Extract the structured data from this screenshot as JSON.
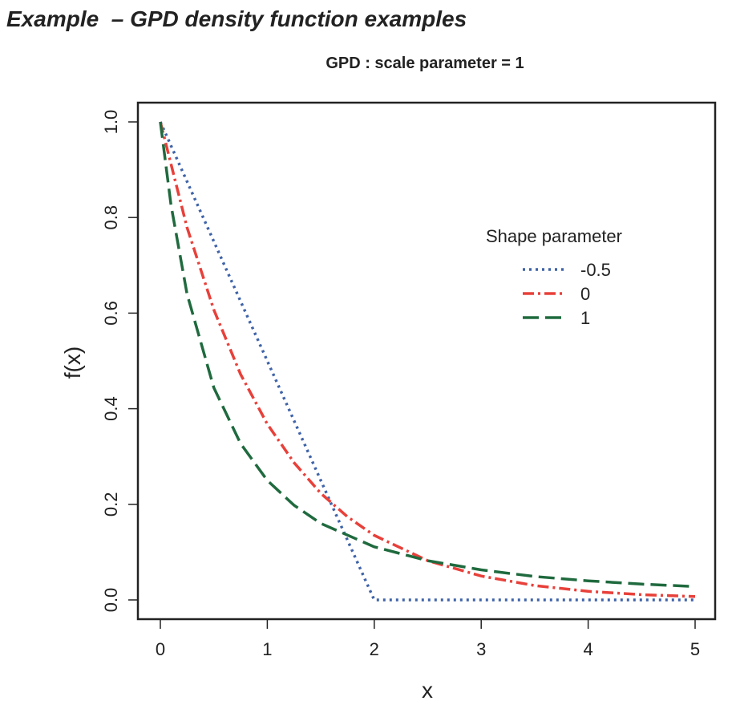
{
  "slide_title": "Example  – GPD density function examples",
  "chart_data": {
    "type": "line",
    "title": "GPD : scale parameter = 1",
    "xlabel": "x",
    "ylabel": "f(x)",
    "xlim": [
      0,
      5
    ],
    "ylim": [
      0,
      1
    ],
    "xticks": [
      "0",
      "1",
      "2",
      "3",
      "4",
      "5"
    ],
    "yticks": [
      "0.0",
      "0.2",
      "0.4",
      "0.6",
      "0.8",
      "1.0"
    ],
    "grid": false,
    "legend": {
      "title": "Shape parameter",
      "placement": "top-right"
    },
    "series": [
      {
        "name": "-0.5",
        "color": "#3f63a8",
        "style": "dotted",
        "x": [
          0,
          0.2,
          0.4,
          0.6,
          0.8,
          1.0,
          1.2,
          1.4,
          1.6,
          1.8,
          2.0,
          2.5,
          3,
          3.5,
          4,
          4.5,
          5
        ],
        "y": [
          1.0,
          0.9,
          0.8,
          0.7,
          0.6,
          0.5,
          0.4,
          0.3,
          0.2,
          0.1,
          0.0,
          0.0,
          0.0,
          0.0,
          0.0,
          0.0,
          0.0
        ]
      },
      {
        "name": "0",
        "color": "#e8403a",
        "style": "dashdot",
        "x": [
          0,
          0.25,
          0.5,
          0.75,
          1.0,
          1.25,
          1.5,
          1.75,
          2.0,
          2.5,
          3.0,
          3.5,
          4.0,
          4.5,
          5.0
        ],
        "y": [
          1.0,
          0.779,
          0.607,
          0.472,
          0.368,
          0.287,
          0.223,
          0.174,
          0.135,
          0.082,
          0.05,
          0.03,
          0.018,
          0.011,
          0.007
        ]
      },
      {
        "name": "1",
        "color": "#1f6a3e",
        "style": "dashed",
        "x": [
          0,
          0.1,
          0.25,
          0.5,
          0.75,
          1.0,
          1.25,
          1.5,
          2.0,
          2.5,
          3.0,
          3.5,
          4.0,
          4.5,
          5.0
        ],
        "y": [
          1.0,
          0.826,
          0.64,
          0.444,
          0.327,
          0.25,
          0.198,
          0.16,
          0.111,
          0.082,
          0.063,
          0.049,
          0.04,
          0.033,
          0.028
        ]
      }
    ]
  }
}
